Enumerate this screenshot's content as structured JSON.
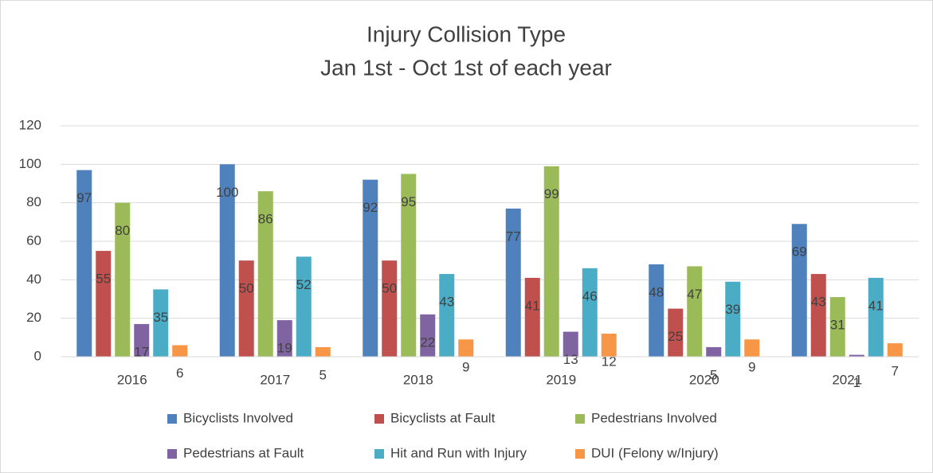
{
  "chart_data": {
    "type": "bar",
    "title": "Injury Collision Type",
    "subtitle": "Jan 1st - Oct 1st of each year",
    "categories": [
      "2016",
      "2017",
      "2018",
      "2019",
      "2020",
      "2021"
    ],
    "series": [
      {
        "name": "Bicyclists Involved",
        "color": "#4f81bd",
        "values": [
          97,
          100,
          92,
          77,
          48,
          69
        ]
      },
      {
        "name": "Bicyclists at Fault",
        "color": "#c0504d",
        "values": [
          55,
          50,
          50,
          41,
          25,
          43
        ]
      },
      {
        "name": "Pedestrians Involved",
        "color": "#9bbb59",
        "values": [
          80,
          86,
          95,
          99,
          47,
          31
        ]
      },
      {
        "name": "Pedestrians at Fault",
        "color": "#8064a2",
        "values": [
          17,
          19,
          22,
          13,
          5,
          1
        ]
      },
      {
        "name": "Hit and Run with Injury",
        "color": "#4bacc6",
        "values": [
          35,
          52,
          43,
          46,
          39,
          41
        ]
      },
      {
        "name": "DUI (Felony w/Injury)",
        "color": "#f79646",
        "values": [
          6,
          5,
          9,
          12,
          9,
          7
        ]
      }
    ],
    "ylim": [
      0,
      120
    ],
    "yticks": [
      0,
      20,
      40,
      60,
      80,
      100,
      120
    ],
    "grid": true,
    "data_labels": true,
    "legend": "bottom"
  }
}
